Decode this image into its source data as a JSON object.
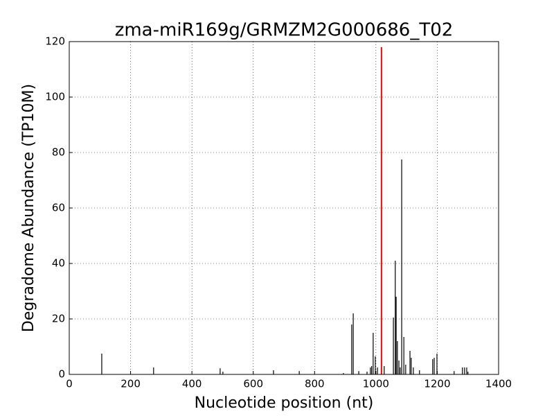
{
  "chart_data": {
    "type": "bar",
    "title": "zma-miR169g/GRMZM2G000686_T02",
    "xlabel": "Nucleotide position (nt)",
    "ylabel": "Degradome Abundance (TP10M)",
    "xlim": [
      0,
      1400
    ],
    "ylim": [
      0,
      120
    ],
    "xticks": [
      0,
      200,
      400,
      600,
      800,
      1000,
      1200,
      1400
    ],
    "yticks": [
      0,
      20,
      40,
      60,
      80,
      100,
      120
    ],
    "grid": true,
    "series": [
      {
        "color": "#000000",
        "x": [
          106,
          275,
          492,
          501,
          666,
          750,
          894,
          921,
          926,
          944,
          971,
          982,
          986,
          991,
          998,
          1005,
          1027,
          1057,
          1063,
          1066,
          1070,
          1075,
          1079,
          1084,
          1091,
          1097,
          1111,
          1115,
          1122,
          1142,
          1185,
          1190,
          1199,
          1255,
          1282,
          1289,
          1296,
          1300
        ],
        "values": [
          7.5,
          2.5,
          2.2,
          1,
          1.5,
          1.2,
          0.5,
          18,
          22,
          1.2,
          1,
          2.5,
          3,
          15,
          6.5,
          2.5,
          3,
          20.5,
          41,
          28,
          12,
          5,
          2.5,
          77.5,
          13.5,
          3.5,
          8.5,
          6,
          2.5,
          1.5,
          5.5,
          6,
          7.5,
          1.2,
          2.5,
          2.5,
          2.5,
          1
        ]
      },
      {
        "color": "#ff0000",
        "x": [
          1018
        ],
        "values": [
          118
        ]
      }
    ]
  }
}
